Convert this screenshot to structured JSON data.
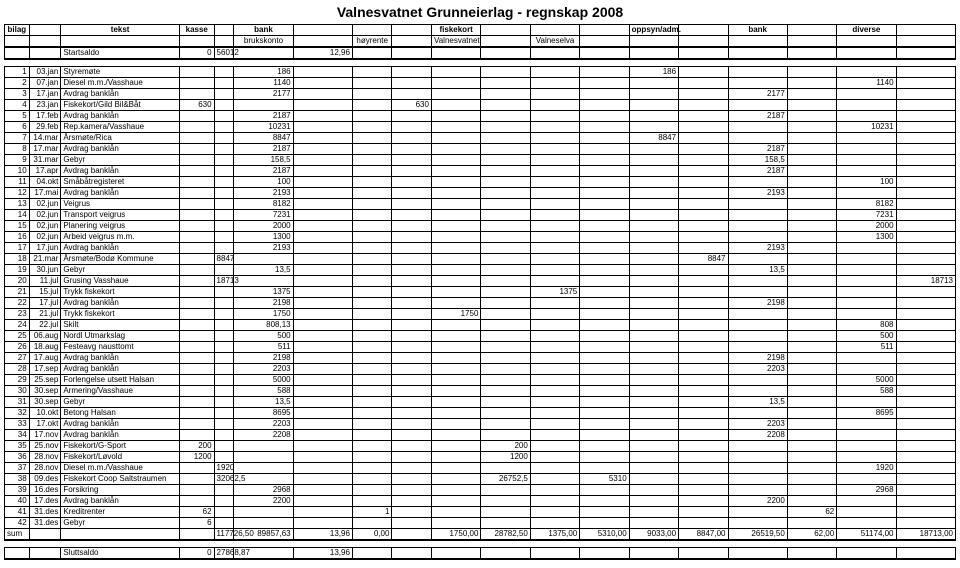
{
  "title": "Valnesvatnet Grunneierlag - regnskap 2008",
  "headersTop": [
    "bilag",
    "",
    "tekst",
    "kasse",
    "",
    "bank",
    "",
    "",
    "",
    "fiskekort",
    "",
    "",
    "",
    "oppsyn/adm.",
    "",
    "bank",
    "",
    "diverse",
    ""
  ],
  "headersSub": [
    "",
    "",
    "",
    "",
    "",
    "brukskonto",
    "",
    "høyrente",
    "",
    "Valnesvatnet",
    "",
    "Valneselva",
    "",
    "",
    "",
    "",
    "",
    "",
    ""
  ],
  "startsaldo": {
    "label": "Startsaldo",
    "kasse": "0",
    "bk1": "56012",
    "bk3": "12,96"
  },
  "rows": [
    {
      "n": "1",
      "d": "03.jan",
      "t": "Styremøte",
      "v": {
        "6": "186",
        "14": "186"
      }
    },
    {
      "n": "2",
      "d": "07.jan",
      "t": "Diesel m.m./Vasshaue",
      "v": {
        "6": "1140",
        "18": "1140"
      }
    },
    {
      "n": "3",
      "d": "17.jan",
      "t": "Avdrag banklån",
      "v": {
        "6": "2177",
        "16": "2177"
      }
    },
    {
      "n": "4",
      "d": "23.jan",
      "t": "Fiskekort/Gild Bil&Båt",
      "v": {
        "4": "630",
        "9": "630"
      }
    },
    {
      "n": "5",
      "d": "17.feb",
      "t": "Avdrag banklån",
      "v": {
        "6": "2187",
        "16": "2187"
      }
    },
    {
      "n": "6",
      "d": "29.feb",
      "t": "Rep.kamera/Vasshaue",
      "v": {
        "6": "10231",
        "18": "10231"
      }
    },
    {
      "n": "7",
      "d": "14.mar",
      "t": "Årsmøte/Rica",
      "v": {
        "6": "8847",
        "14": "8847"
      }
    },
    {
      "n": "8",
      "d": "17.mar",
      "t": "Avdrag banklån",
      "v": {
        "6": "2187",
        "16": "2187"
      }
    },
    {
      "n": "9",
      "d": "31.mar",
      "t": "Gebyr",
      "v": {
        "6": "158,5",
        "16": "158,5"
      }
    },
    {
      "n": "10",
      "d": "17.apr",
      "t": "Avdrag banklån",
      "v": {
        "6": "2187",
        "16": "2187"
      }
    },
    {
      "n": "11",
      "d": "04.okt",
      "t": "Småbåtregisteret",
      "v": {
        "6": "100",
        "18": "100"
      }
    },
    {
      "n": "12",
      "d": "17.mai",
      "t": "Avdrag banklån",
      "v": {
        "6": "2193",
        "16": "2193"
      }
    },
    {
      "n": "13",
      "d": "02.jun",
      "t": "Veigrus",
      "v": {
        "6": "8182",
        "18": "8182"
      }
    },
    {
      "n": "14",
      "d": "02.jun",
      "t": "Transport veigrus",
      "v": {
        "6": "7231",
        "18": "7231"
      }
    },
    {
      "n": "15",
      "d": "02.jun",
      "t": "Planering veigrus",
      "v": {
        "6": "2000",
        "18": "2000"
      }
    },
    {
      "n": "16",
      "d": "02.jun",
      "t": "Arbeid veigrus m.m.",
      "v": {
        "6": "1300",
        "18": "1300"
      }
    },
    {
      "n": "17",
      "d": "17.jun",
      "t": "Avdrag banklån",
      "v": {
        "6": "2193",
        "16": "2193"
      }
    },
    {
      "n": "18",
      "d": "21.mar",
      "t": "Årsmøte/Bodø Kommune",
      "v": {
        "5": "8847",
        "15": "8847"
      }
    },
    {
      "n": "19",
      "d": "30.jun",
      "t": "Gebyr",
      "v": {
        "6": "13,5",
        "16": "13,5"
      }
    },
    {
      "n": "20",
      "d": "11.jul",
      "t": "Grusing Vasshaue",
      "v": {
        "5": "18713",
        "19": "18713"
      }
    },
    {
      "n": "21",
      "d": "15.jul",
      "t": "Trykk fiskekort",
      "v": {
        "6": "1375",
        "12": "1375"
      }
    },
    {
      "n": "22",
      "d": "17.jul",
      "t": "Avdrag banklån",
      "v": {
        "6": "2198",
        "16": "2198"
      }
    },
    {
      "n": "23",
      "d": "21.jul",
      "t": "Trykk fiskekort",
      "v": {
        "6": "1750",
        "10": "1750"
      }
    },
    {
      "n": "24",
      "d": "22.jul",
      "t": "Skilt",
      "v": {
        "6": "808,13",
        "18": "808"
      }
    },
    {
      "n": "25",
      "d": "06.aug",
      "t": "Nordl Utmarkslag",
      "v": {
        "6": "500",
        "18": "500"
      }
    },
    {
      "n": "26",
      "d": "18.aug",
      "t": "Festeavg nausttomt",
      "v": {
        "6": "511",
        "18": "511"
      }
    },
    {
      "n": "27",
      "d": "17.aug",
      "t": "Avdrag banklån",
      "v": {
        "6": "2198",
        "16": "2198"
      }
    },
    {
      "n": "28",
      "d": "17.sep",
      "t": "Avdrag banklån",
      "v": {
        "6": "2203",
        "16": "2203"
      }
    },
    {
      "n": "29",
      "d": "25.sep",
      "t": "Forlengelse utsett Halsan",
      "v": {
        "6": "5000",
        "18": "5000"
      }
    },
    {
      "n": "30",
      "d": "30.sep",
      "t": "Armering/Vasshaue",
      "v": {
        "6": "588",
        "18": "588"
      }
    },
    {
      "n": "31",
      "d": "30.sep",
      "t": "Gebyr",
      "v": {
        "6": "13,5",
        "16": "13,5"
      }
    },
    {
      "n": "32",
      "d": "10.okt",
      "t": "Betong Halsan",
      "v": {
        "6": "8695",
        "18": "8695"
      }
    },
    {
      "n": "33",
      "d": "17.okt",
      "t": "Avdrag banklån",
      "v": {
        "6": "2203",
        "16": "2203"
      }
    },
    {
      "n": "34",
      "d": "17.nov",
      "t": "Avdrag banklån",
      "v": {
        "6": "2208",
        "16": "2208"
      }
    },
    {
      "n": "35",
      "d": "25.nov",
      "t": "Fiskekort/G-Sport",
      "v": {
        "4": "200",
        "11": "200"
      }
    },
    {
      "n": "36",
      "d": "28.nov",
      "t": "Fiskekort/Løvold",
      "v": {
        "4": "1200",
        "11": "1200"
      }
    },
    {
      "n": "37",
      "d": "28.nov",
      "t": "Diesel m.m./Vasshaue",
      "v": {
        "5": "1920",
        "18": "1920"
      }
    },
    {
      "n": "38",
      "d": "09.des",
      "t": "Fiskekort Coop Saltstraumen",
      "v": {
        "5": "32062,5",
        "11": "26752,5",
        "13": "5310"
      }
    },
    {
      "n": "39",
      "d": "16.des",
      "t": "Forsikring",
      "v": {
        "6": "2968",
        "18": "2968"
      }
    },
    {
      "n": "40",
      "d": "17.des",
      "t": "Avdrag banklån",
      "v": {
        "6": "2200",
        "16": "2200"
      }
    },
    {
      "n": "41",
      "d": "31.des",
      "t": "Kreditrenter",
      "v": {
        "4": "62",
        "8": "1",
        "17": "62"
      }
    },
    {
      "n": "42",
      "d": "31.des",
      "t": "Gebyr",
      "v": {
        "4": "6"
      }
    }
  ],
  "sum": {
    "label": "sum",
    "v": {
      "5": "117726,50",
      "6": "89857,63",
      "7": "13,96",
      "8": "0,00",
      "10": "1750,00",
      "11": "28782,50",
      "12": "1375,00",
      "13": "5310,00",
      "14": "9033,00",
      "15": "8847,00",
      "16": "26519,50",
      "17": "62,00",
      "18": "51174,00",
      "19": "18713,00"
    }
  },
  "sluttsaldo": {
    "label": "Sluttsaldo",
    "v": {
      "4": "0",
      "5": "27868,87",
      "7": "13,96"
    }
  }
}
